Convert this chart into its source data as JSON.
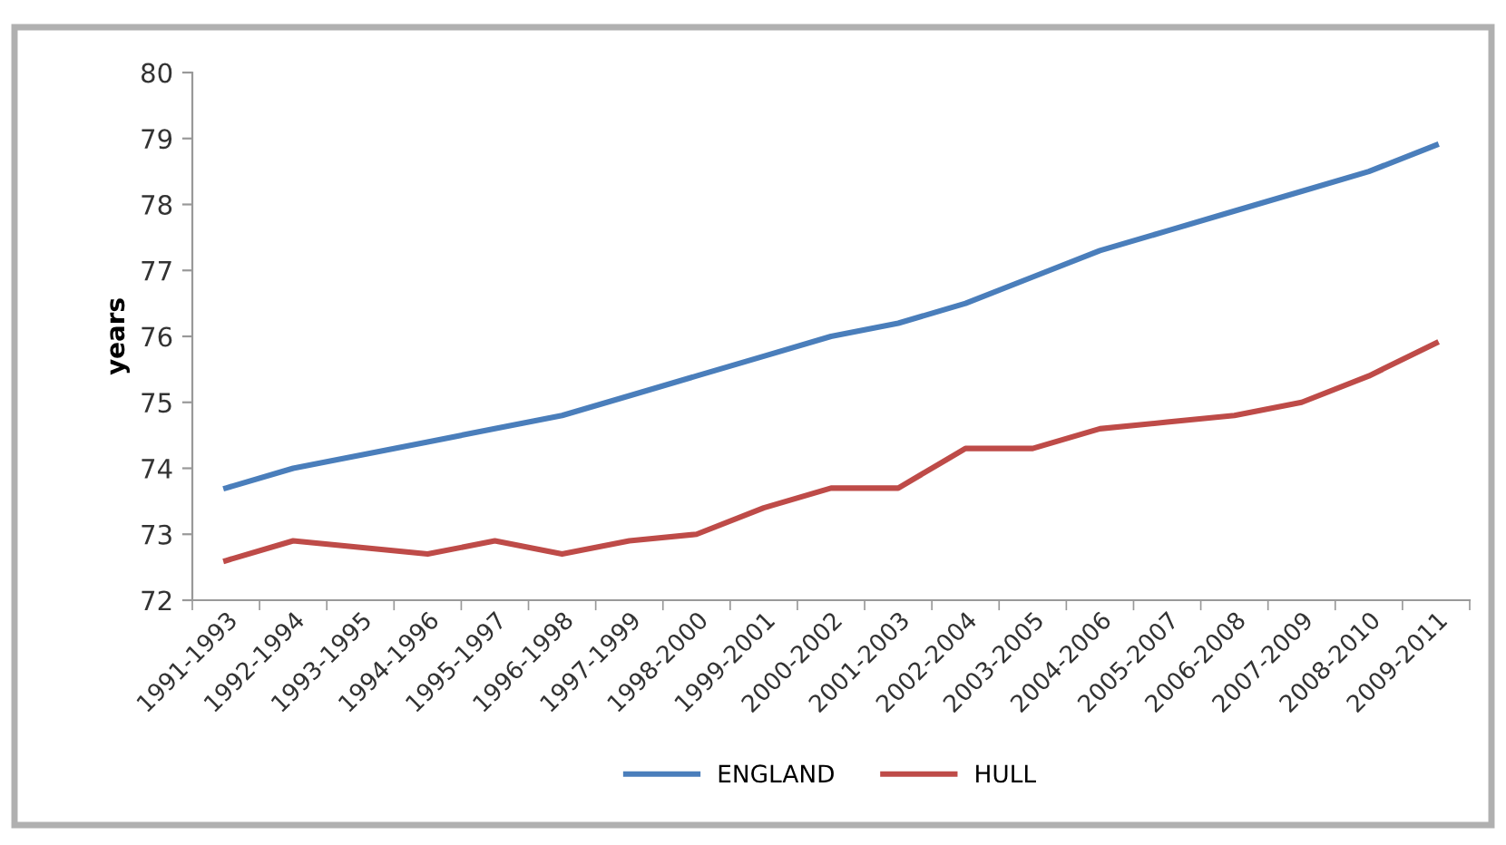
{
  "chart_data": {
    "type": "line",
    "ylabel": "years",
    "categories": [
      "1991-1993",
      "1992-1994",
      "1993-1995",
      "1994-1996",
      "1995-1997",
      "1996-1998",
      "1997-1999",
      "1998-2000",
      "1999-2001",
      "2000-2002",
      "2001-2003",
      "2002-2004",
      "2003-2005",
      "2004-2006",
      "2005-2007",
      "2006-2008",
      "2007-2009",
      "2008-2010",
      "2009-2011"
    ],
    "series": [
      {
        "name": "ENGLAND",
        "color": "#4a7ebb",
        "values": [
          73.7,
          74.0,
          74.2,
          74.4,
          74.6,
          74.8,
          75.1,
          75.4,
          75.7,
          76.0,
          76.2,
          76.5,
          76.9,
          77.3,
          77.6,
          77.9,
          78.2,
          78.5,
          78.9
        ]
      },
      {
        "name": "HULL",
        "color": "#be4b48",
        "values": [
          72.6,
          72.9,
          72.8,
          72.7,
          72.9,
          72.7,
          72.9,
          73.0,
          73.4,
          73.7,
          73.7,
          74.3,
          74.3,
          74.6,
          74.7,
          74.8,
          75.0,
          75.4,
          75.9
        ]
      }
    ],
    "ylim": [
      72,
      80
    ],
    "yticks": [
      72,
      73,
      74,
      75,
      76,
      77,
      78,
      79,
      80
    ],
    "grid": false,
    "legend": "bottom",
    "marker": "none",
    "line_style": "solid"
  }
}
